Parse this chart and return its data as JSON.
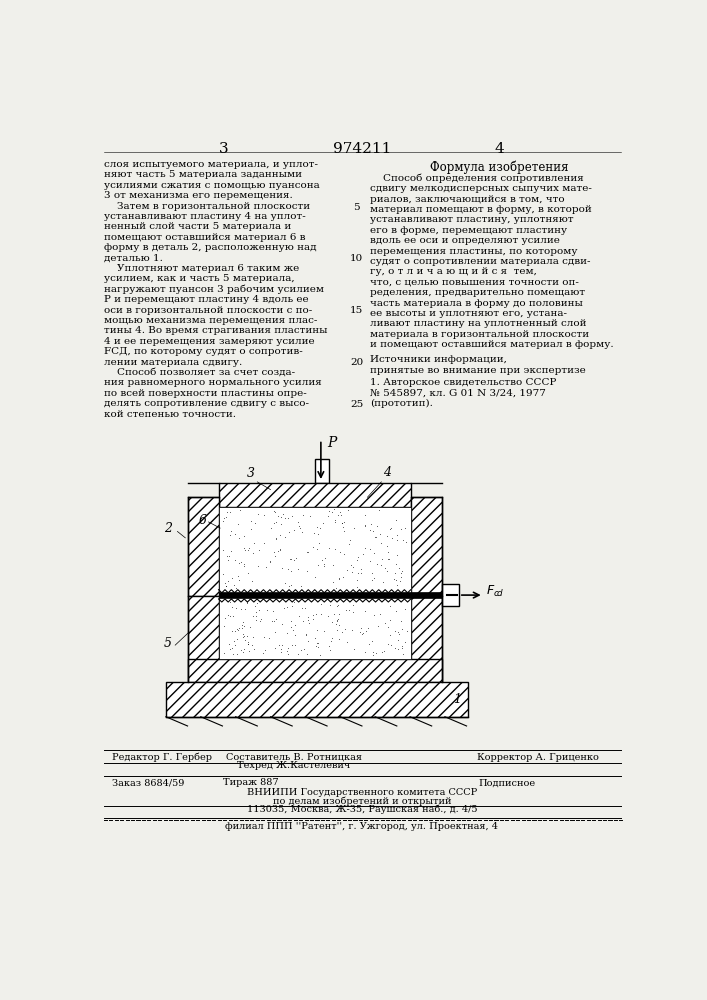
{
  "bg_color": "#f0f0eb",
  "page_number_left": "3",
  "page_number_center": "974211",
  "page_number_right": "4",
  "left_column_text": [
    "слоя испытуемого материала, и уплот-",
    "няют часть 5 материала заданными",
    "усилиями сжатия с помощью пуансона",
    "3 от механизма его перемещения.",
    "    Затем в горизонтальной плоскости",
    "устанавливают пластину 4 на уплот-",
    "ненный слой части 5 материала и",
    "помещают оставшийся материал 6 в",
    "форму в деталь 2, расположенную над",
    "деталью 1.",
    "    Уплотняют материал 6 таким же",
    "усилием, как и часть 5 материала,",
    "нагружают пуансон 3 рабочим усилием",
    "P и перемещают пластину 4 вдоль ее",
    "оси в горизонтальной плоскости с по-",
    "мощью механизма перемещения плас-",
    "тины 4. Во время страгивания пластины",
    "4 и ее перемещения замеряют усилие",
    "FСД, по которому судят о сопротив-",
    "лении материала сдвигу.",
    "    Способ позволяет за счет созда-",
    "ния равномерного нормального усилия",
    "по всей поверхности пластины опре-",
    "делять сопротивление сдвигу с высо-",
    "кой степенью точности."
  ],
  "right_column_header": "Формула изобретения",
  "right_column_text": [
    "    Способ определения сопротивления",
    "сдвигу мелкодисперсных сыпучих мате-",
    "риалов, заключающийся в том, что",
    "материал помещают в форму, в которой",
    "устанавливают пластину, уплотняют",
    "его в форме, перемещают пластину",
    "вдоль ее оси и определяют усилие",
    "перемещения пластины, по которому",
    "судят о сопротивлении материала сдви-",
    "гу, о т л и ч а ю щ и й с я  тем,",
    "что, с целью повышения точности оп-",
    "ределения, предварительно помещают",
    "часть материала в форму до половины",
    "ее высоты и уплотняют его, устана-",
    "ливают пластину на уплотненный слой",
    "материала в горизонтальной плоскости",
    "и помещают оставшийся материал в форму."
  ],
  "sources_header": "Источники информации,",
  "sources_sub": "принятые во внимание при экспертизе",
  "source_1": "1. Авторское свидетельство СССР",
  "source_1b": "№ 545897, кл. G 01 N 3/24, 1977",
  "source_1c": "(прототип).",
  "footer_editor": "Редактор Г. Гербер",
  "footer_composer": "Составитель В. Ротницкая",
  "footer_techred": "Техред Ж.Кастелевич",
  "footer_corrector": "Корректор А. Гриценко",
  "footer_order": "Заказ 8684/59",
  "footer_print": "Тираж 887",
  "footer_signed": "Подписное",
  "footer_org1": "ВНИИПИ Государственного комитета СССР",
  "footer_org2": "по делам изобретений и открытий",
  "footer_org3": "113035, Москва, Ж-35, Раушская наб., д. 4/5",
  "footer_branch": "филиал ППП ''Pатент'', г. Ужгород, ул. Проектная, 4",
  "fcd_label": "Fcd"
}
